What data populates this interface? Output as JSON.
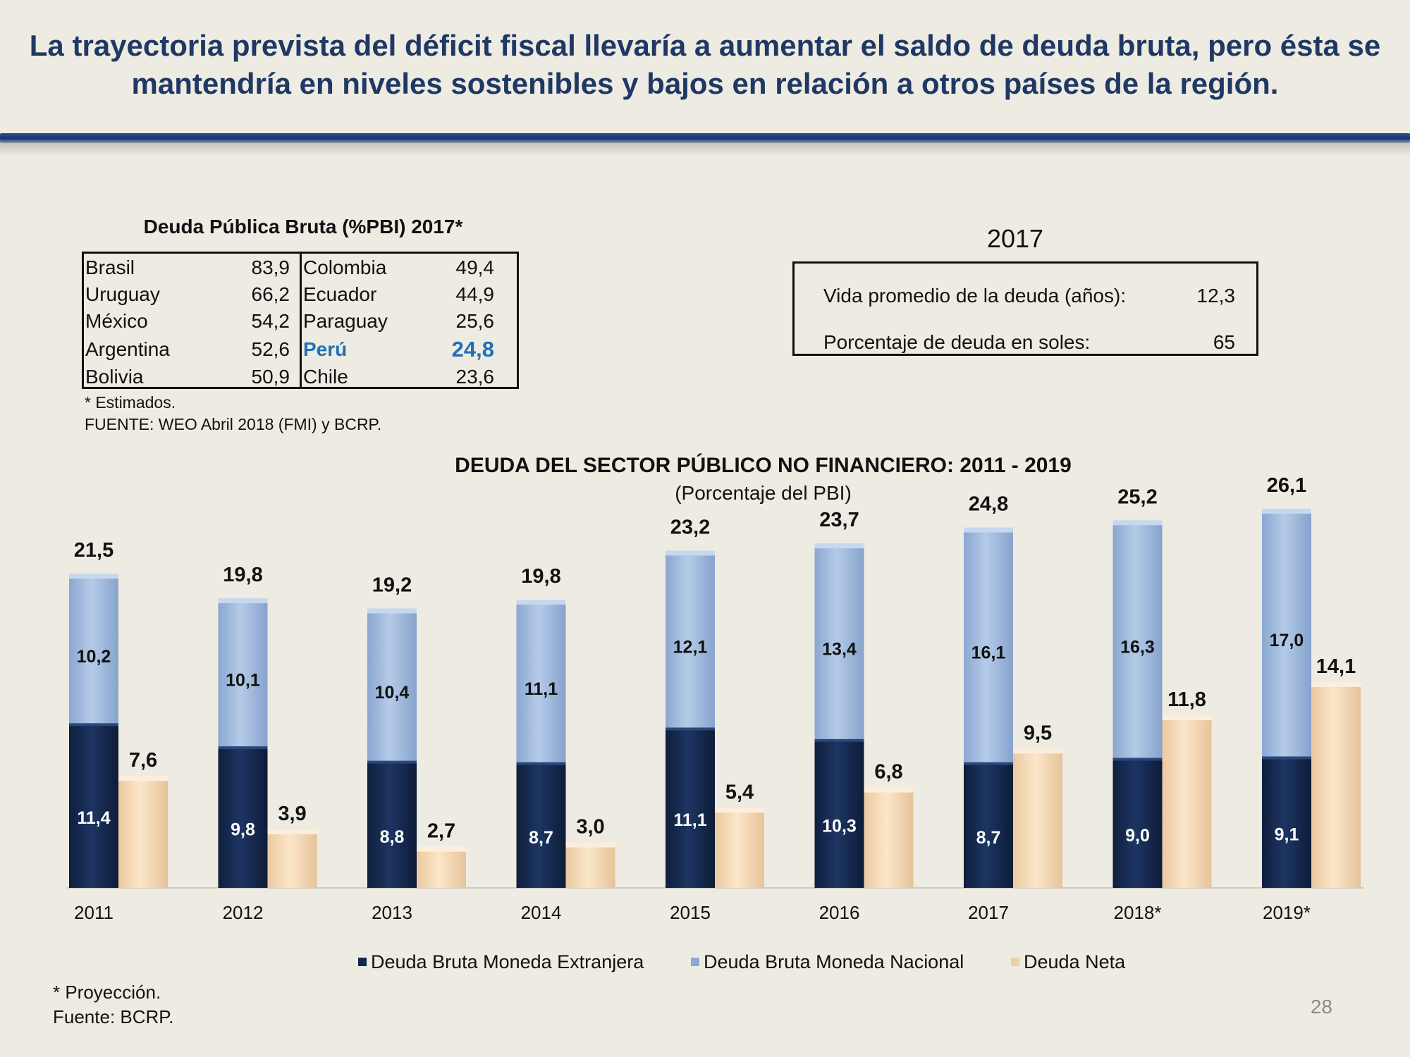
{
  "title": "La trayectoria prevista del déficit fiscal llevaría a aumentar el saldo de deuda bruta, pero ésta se mantendría en niveles sostenibles y bajos en relación a otros países de la región.",
  "debt_table": {
    "title": "Deuda Pública Bruta (%PBI) 2017*",
    "left": [
      {
        "country": "Brasil",
        "value": "83,9"
      },
      {
        "country": "Uruguay",
        "value": "66,2"
      },
      {
        "country": "México",
        "value": "54,2"
      },
      {
        "country": "Argentina",
        "value": "52,6"
      },
      {
        "country": "Bolivia",
        "value": "50,9"
      }
    ],
    "right": [
      {
        "country": "Colombia",
        "value": "49,4"
      },
      {
        "country": "Ecuador",
        "value": "44,9"
      },
      {
        "country": "Paraguay",
        "value": "25,6"
      },
      {
        "country": "Perú",
        "value": "24,8"
      },
      {
        "country": "Chile",
        "value": "23,6"
      }
    ],
    "note": "* Estimados.",
    "source": "FUENTE: WEO Abril 2018 (FMI) y BCRP."
  },
  "metrics": {
    "year": "2017",
    "rows": [
      {
        "label": "Vida promedio de la deuda (años):",
        "value": "12,3"
      },
      {
        "label": "Porcentaje de deuda en soles:",
        "value": "65"
      }
    ]
  },
  "chart_data": {
    "type": "bar",
    "title": "DEUDA DEL SECTOR PÚBLICO NO FINANCIERO: 2011 - 2019",
    "subtitle": "(Porcentaje del PBI)",
    "categories": [
      "2011",
      "2012",
      "2013",
      "2014",
      "2015",
      "2016",
      "2017",
      "2018*",
      "2019*"
    ],
    "stacked_series": [
      {
        "name": "Deuda Bruta Moneda Extranjera",
        "values": [
          11.4,
          9.8,
          8.8,
          8.7,
          11.1,
          10.3,
          8.7,
          9.0,
          9.1
        ],
        "labels": [
          "11,4",
          "9,8",
          "8,8",
          "8,7",
          "11,1",
          "10,3",
          "8,7",
          "9,0",
          "9,1"
        ]
      },
      {
        "name": "Deuda Bruta Moneda Nacional",
        "values": [
          10.2,
          10.1,
          10.4,
          11.1,
          12.1,
          13.4,
          16.1,
          16.3,
          17.0
        ],
        "labels": [
          "10,2",
          "10,1",
          "10,4",
          "11,1",
          "12,1",
          "13,4",
          "16,1",
          "16,3",
          "17,0"
        ]
      }
    ],
    "totals": {
      "values": [
        21.5,
        19.8,
        19.2,
        19.8,
        23.2,
        23.7,
        24.8,
        25.2,
        26.1
      ],
      "labels": [
        "21,5",
        "19,8",
        "19,2",
        "19,8",
        "23,2",
        "23,7",
        "24,8",
        "25,2",
        "26,1"
      ]
    },
    "side_series": {
      "name": "Deuda Neta",
      "values": [
        7.6,
        3.9,
        2.7,
        3.0,
        5.4,
        6.8,
        9.5,
        11.8,
        14.1
      ],
      "labels": [
        "7,6",
        "3,9",
        "2,7",
        "3,0",
        "5,4",
        "6,8",
        "9,5",
        "11,8",
        "14,1"
      ]
    },
    "colors": {
      "extranjera": "#14284d",
      "nacional": "#a8c0e0",
      "neta": "#f7dfbd"
    },
    "ylim": [
      0,
      28
    ],
    "legend_position": "bottom"
  },
  "footnotes": {
    "projection": "* Proyección.",
    "source": "Fuente: BCRP."
  },
  "page_number": "28"
}
